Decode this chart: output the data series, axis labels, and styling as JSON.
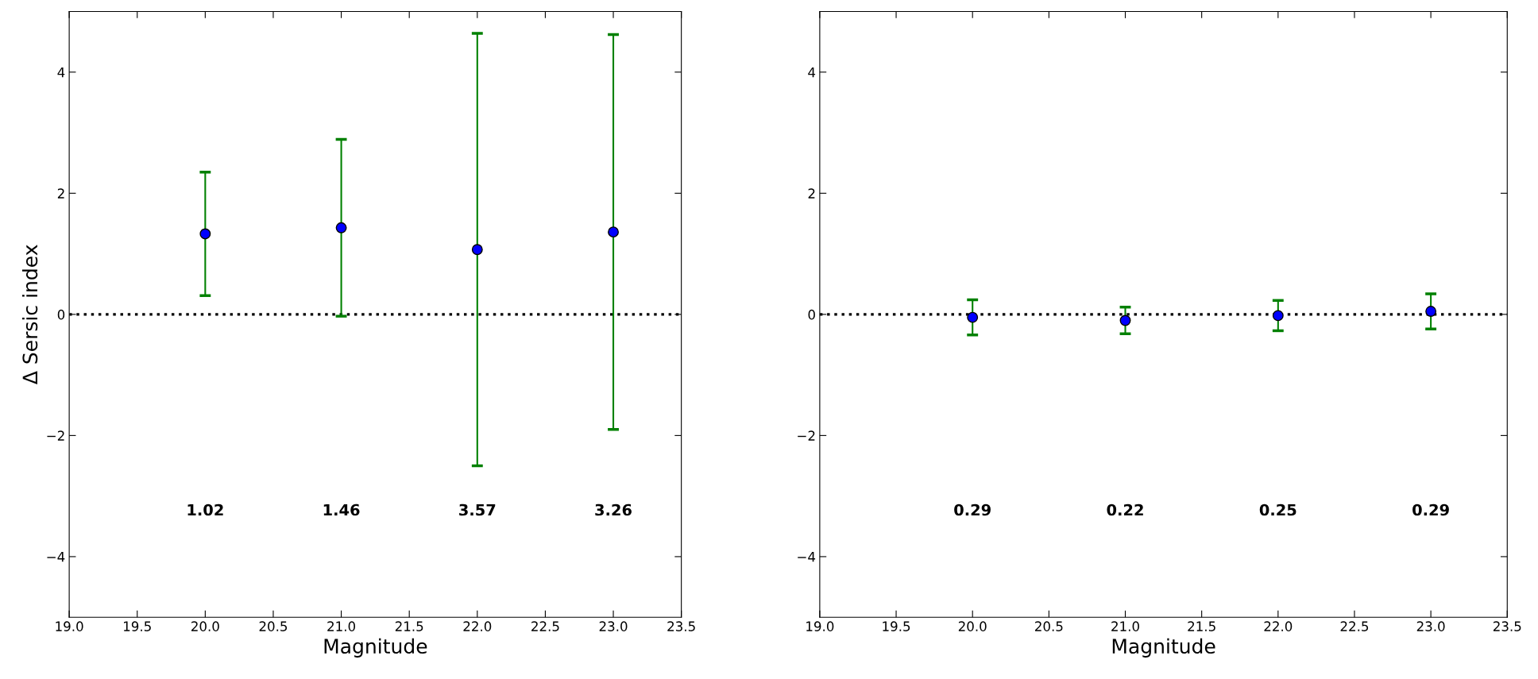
{
  "chart_data": [
    {
      "type": "scatter",
      "xlabel": "Magnitude",
      "ylabel": "Δ Sersic index",
      "x": [
        20.0,
        21.0,
        22.0,
        23.0
      ],
      "series": [
        {
          "color": "#0000ff",
          "values": [
            1.33,
            1.43,
            1.07,
            1.36
          ],
          "errors": [
            1.02,
            1.46,
            3.57,
            3.26
          ]
        }
      ],
      "xlim": [
        19.0,
        23.5
      ],
      "xticks": [
        {
          "value": 19.0,
          "label": "19.0"
        },
        {
          "value": 19.5,
          "label": "19.5"
        },
        {
          "value": 20.0,
          "label": "20.0"
        },
        {
          "value": 20.5,
          "label": "20.5"
        },
        {
          "value": 21.0,
          "label": "21.0"
        },
        {
          "value": 21.5,
          "label": "21.5"
        },
        {
          "value": 22.0,
          "label": "22.0"
        },
        {
          "value": 22.5,
          "label": "22.5"
        },
        {
          "value": 23.0,
          "label": "23.0"
        },
        {
          "value": 23.5,
          "label": "23.5"
        }
      ],
      "ylim": [
        -5,
        5
      ],
      "yticks": [
        -4,
        -2,
        0,
        2,
        4
      ],
      "ref_lines": [
        {
          "axis": "y",
          "value": 0,
          "color": "#000000",
          "line_style": "dotted"
        }
      ],
      "annotations": [
        "1.02",
        "1.46",
        "3.57",
        "3.26"
      ],
      "marker": "circle",
      "grid": false,
      "legend": false
    },
    {
      "type": "scatter",
      "xlabel": "Magnitude",
      "x": [
        20.0,
        21.0,
        22.0,
        23.0
      ],
      "series": [
        {
          "color": "#0000ff",
          "values": [
            -0.05,
            -0.1,
            -0.02,
            0.05
          ],
          "errors": [
            0.29,
            0.22,
            0.25,
            0.29
          ]
        }
      ],
      "xlim": [
        19.0,
        23.5
      ],
      "xticks": [
        {
          "value": 19.0,
          "label": "19.0"
        },
        {
          "value": 19.5,
          "label": "19.5"
        },
        {
          "value": 20.0,
          "label": "20.0"
        },
        {
          "value": 20.5,
          "label": "20.5"
        },
        {
          "value": 21.0,
          "label": "21.0"
        },
        {
          "value": 21.5,
          "label": "21.5"
        },
        {
          "value": 22.0,
          "label": "22.0"
        },
        {
          "value": 22.5,
          "label": "22.5"
        },
        {
          "value": 23.0,
          "label": "23.0"
        },
        {
          "value": 23.5,
          "label": "23.5"
        }
      ],
      "ylim": [
        -5,
        5
      ],
      "yticks": [
        -4,
        -2,
        0,
        2,
        4
      ],
      "ref_lines": [
        {
          "axis": "y",
          "value": 0,
          "color": "#000000",
          "line_style": "dotted"
        }
      ],
      "annotations": [
        "0.29",
        "0.22",
        "0.25",
        "0.29"
      ],
      "marker": "circle",
      "grid": false,
      "legend": false
    }
  ]
}
